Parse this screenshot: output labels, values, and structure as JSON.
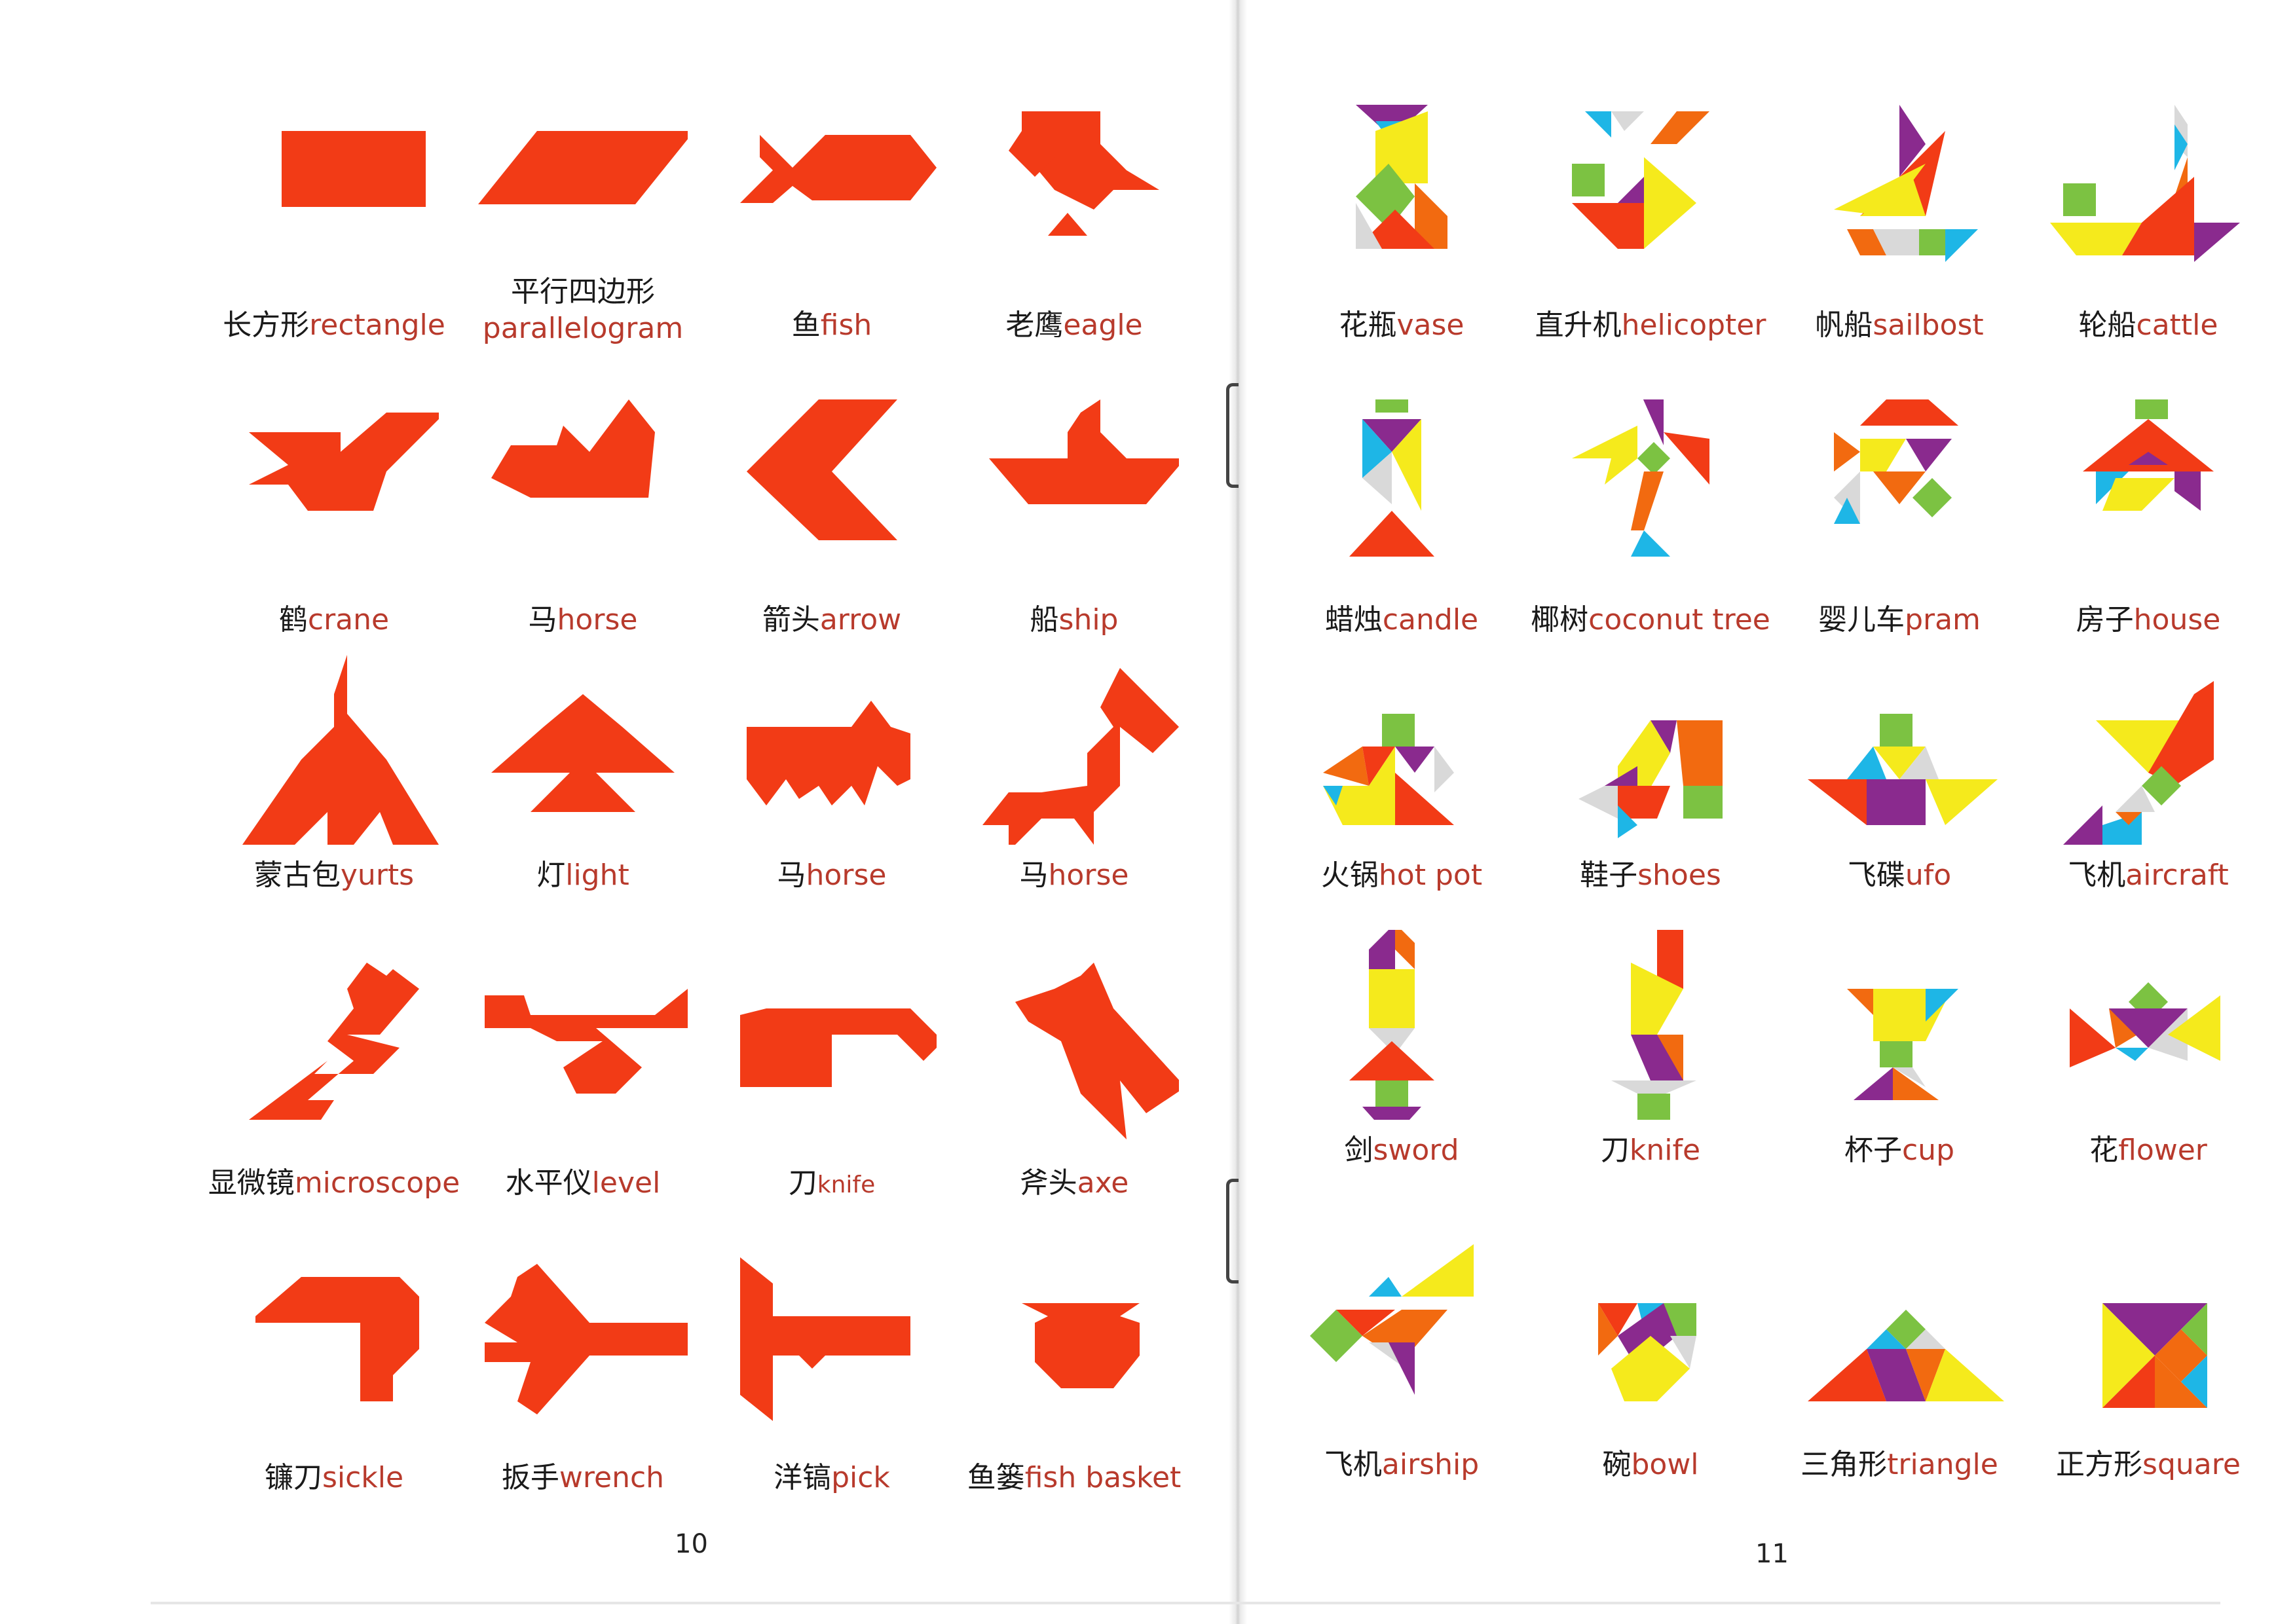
{
  "colors": {
    "red": "#f23b16",
    "yellow": "#f5ea1c",
    "orange": "#f26a10",
    "green": "#7cc242",
    "blue": "#1eb6e6",
    "purple": "#8a2a8e",
    "grey": "#d9d9d9",
    "label_en": "#b83a2c"
  },
  "left_page": {
    "page_number": "10",
    "items": [
      {
        "zh": "长方形",
        "en": "rectangle"
      },
      {
        "zh": "平行四边形",
        "en": "parallelogram"
      },
      {
        "zh": "鱼",
        "en": "fish"
      },
      {
        "zh": "老鹰",
        "en": "eagle"
      },
      {
        "zh": "鹤",
        "en": "crane"
      },
      {
        "zh": "马",
        "en": "horse"
      },
      {
        "zh": "箭头",
        "en": "arrow"
      },
      {
        "zh": "船",
        "en": "ship"
      },
      {
        "zh": "蒙古包",
        "en": "yurts"
      },
      {
        "zh": "灯",
        "en": "light"
      },
      {
        "zh": "马",
        "en": "horse"
      },
      {
        "zh": "马",
        "en": "horse"
      },
      {
        "zh": "显微镜",
        "en": "microscope"
      },
      {
        "zh": "水平仪",
        "en": "level"
      },
      {
        "zh": "刀",
        "en": "knife"
      },
      {
        "zh": "斧头",
        "en": "axe"
      },
      {
        "zh": "镰刀",
        "en": "sickle"
      },
      {
        "zh": "扳手",
        "en": "wrench"
      },
      {
        "zh": "洋镐",
        "en": "pick"
      },
      {
        "zh": "鱼篓",
        "en": "fish basket"
      }
    ]
  },
  "right_page": {
    "page_number": "11",
    "items": [
      {
        "zh": "花瓶",
        "en": "vase"
      },
      {
        "zh": "直升机",
        "en": "helicopter"
      },
      {
        "zh": "帆船",
        "en": "sailbost"
      },
      {
        "zh": "轮船",
        "en": "cattle"
      },
      {
        "zh": "蜡烛",
        "en": "candle"
      },
      {
        "zh": "椰树",
        "en": "coconut tree"
      },
      {
        "zh": "婴儿车",
        "en": "pram"
      },
      {
        "zh": "房子",
        "en": "house"
      },
      {
        "zh": "火锅",
        "en": "hot pot"
      },
      {
        "zh": "鞋子",
        "en": "shoes"
      },
      {
        "zh": "飞碟",
        "en": "ufo"
      },
      {
        "zh": "飞机",
        "en": "aircraft"
      },
      {
        "zh": "剑",
        "en": "sword"
      },
      {
        "zh": "刀",
        "en": "knife"
      },
      {
        "zh": "杯子",
        "en": "cup"
      },
      {
        "zh": "花",
        "en": "flower"
      },
      {
        "zh": "飞机",
        "en": "airship"
      },
      {
        "zh": "碗",
        "en": "bowl"
      },
      {
        "zh": "三角形",
        "en": "triangle"
      },
      {
        "zh": "正方形",
        "en": "square"
      }
    ]
  }
}
